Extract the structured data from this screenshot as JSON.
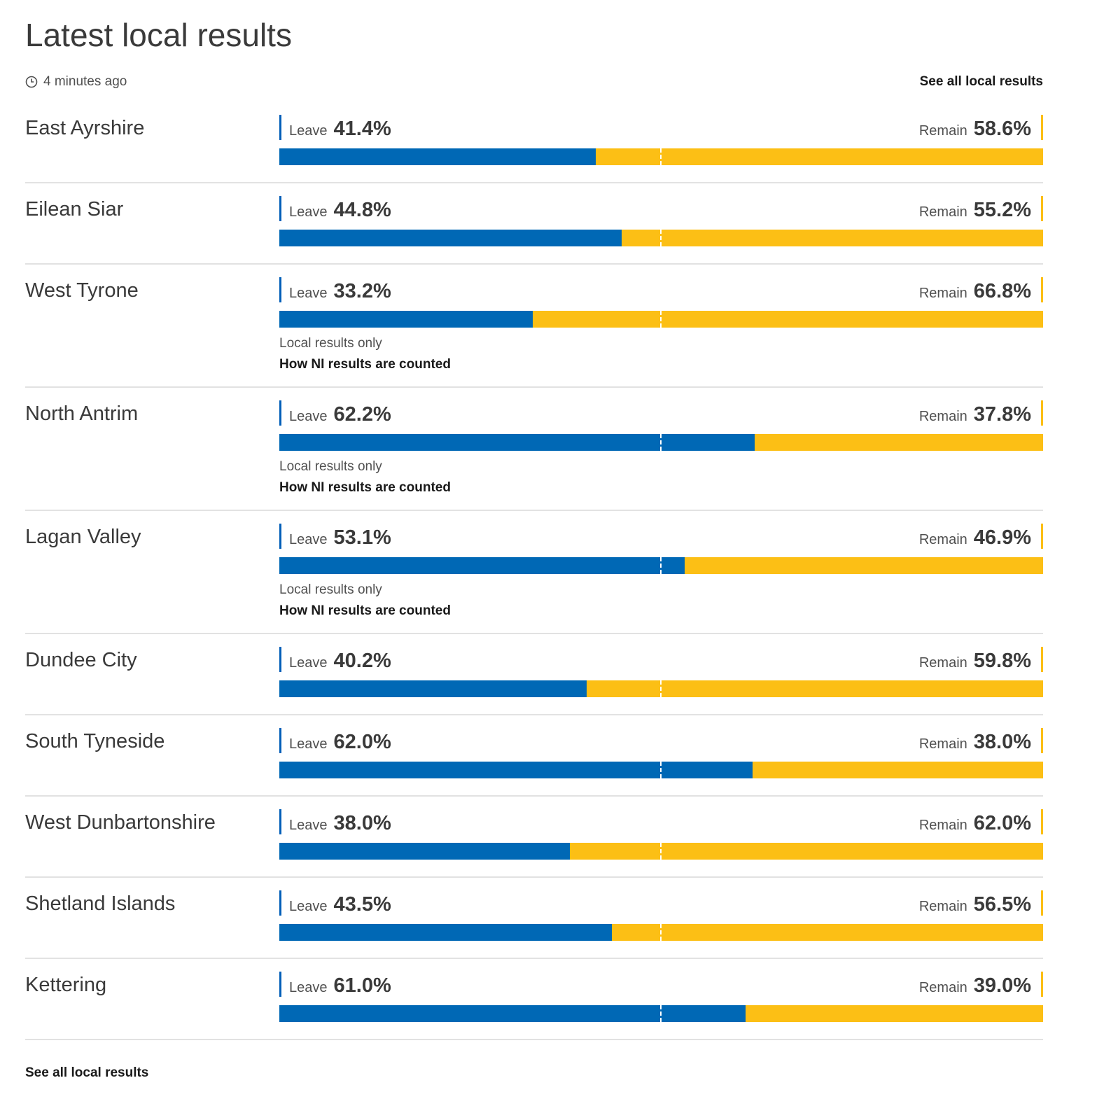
{
  "header": {
    "title": "Latest local results",
    "timestamp": "4 minutes ago",
    "see_all_label": "See all local results"
  },
  "colors": {
    "leave": "#0068b5",
    "remain": "#fcbf15"
  },
  "results": [
    {
      "area": "East Ayrshire",
      "leave_label": "Leave",
      "leave_pct": "41.4%",
      "leave_value": 41.4,
      "remain_label": "Remain",
      "remain_pct": "58.6%"
    },
    {
      "area": "Eilean Siar",
      "leave_label": "Leave",
      "leave_pct": "44.8%",
      "leave_value": 44.8,
      "remain_label": "Remain",
      "remain_pct": "55.2%"
    },
    {
      "area": "West Tyrone",
      "leave_label": "Leave",
      "leave_pct": "33.2%",
      "leave_value": 33.2,
      "remain_label": "Remain",
      "remain_pct": "66.8%",
      "note": "Local results only",
      "link": "How NI results are counted"
    },
    {
      "area": "North Antrim",
      "leave_label": "Leave",
      "leave_pct": "62.2%",
      "leave_value": 62.2,
      "remain_label": "Remain",
      "remain_pct": "37.8%",
      "note": "Local results only",
      "link": "How NI results are counted"
    },
    {
      "area": "Lagan Valley",
      "leave_label": "Leave",
      "leave_pct": "53.1%",
      "leave_value": 53.1,
      "remain_label": "Remain",
      "remain_pct": "46.9%",
      "note": "Local results only",
      "link": "How NI results are counted"
    },
    {
      "area": "Dundee City",
      "leave_label": "Leave",
      "leave_pct": "40.2%",
      "leave_value": 40.2,
      "remain_label": "Remain",
      "remain_pct": "59.8%"
    },
    {
      "area": "South Tyneside",
      "leave_label": "Leave",
      "leave_pct": "62.0%",
      "leave_value": 62.0,
      "remain_label": "Remain",
      "remain_pct": "38.0%"
    },
    {
      "area": "West Dunbartonshire",
      "leave_label": "Leave",
      "leave_pct": "38.0%",
      "leave_value": 38.0,
      "remain_label": "Remain",
      "remain_pct": "62.0%"
    },
    {
      "area": "Shetland Islands",
      "leave_label": "Leave",
      "leave_pct": "43.5%",
      "leave_value": 43.5,
      "remain_label": "Remain",
      "remain_pct": "56.5%"
    },
    {
      "area": "Kettering",
      "leave_label": "Leave",
      "leave_pct": "61.0%",
      "leave_value": 61.0,
      "remain_label": "Remain",
      "remain_pct": "39.0%"
    }
  ],
  "footer": {
    "see_all_label": "See all local results"
  }
}
